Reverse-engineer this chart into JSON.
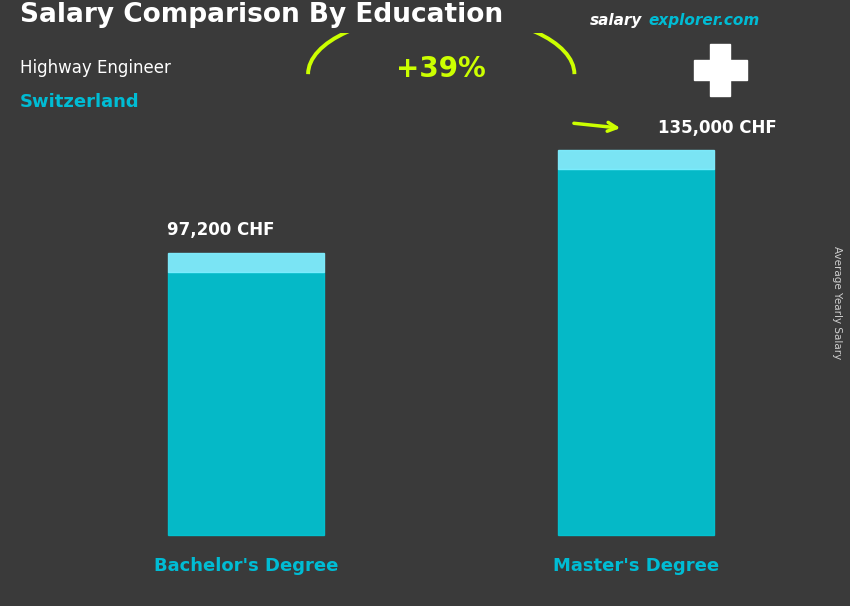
{
  "title": "Salary Comparison By Education",
  "subtitle_job": "Highway Engineer",
  "subtitle_country": "Switzerland",
  "watermark_salary": "salary",
  "watermark_explorer": "explorer.com",
  "ylabel": "Average Yearly Salary",
  "categories": [
    "Bachelor's Degree",
    "Master's Degree"
  ],
  "values": [
    97200,
    135000
  ],
  "value_labels": [
    "97,200 CHF",
    "135,000 CHF"
  ],
  "bar_color": "#00c8d7",
  "bar_top_color": "#7eeeff",
  "pct_change": "+39%",
  "pct_color": "#ccff00",
  "title_color": "#ffffff",
  "subtitle_job_color": "#ffffff",
  "subtitle_country_color": "#00bcd4",
  "watermark_white": "#ffffff",
  "watermark_cyan": "#00bcd4",
  "label_color": "#ffffff",
  "category_label_color": "#00bcd4",
  "swiss_flag_red": "#cc0000",
  "fig_bg": "#3a3a3a",
  "fig_width": 8.5,
  "fig_height": 6.06,
  "ylim_min": -25000,
  "ylim_max": 185000
}
